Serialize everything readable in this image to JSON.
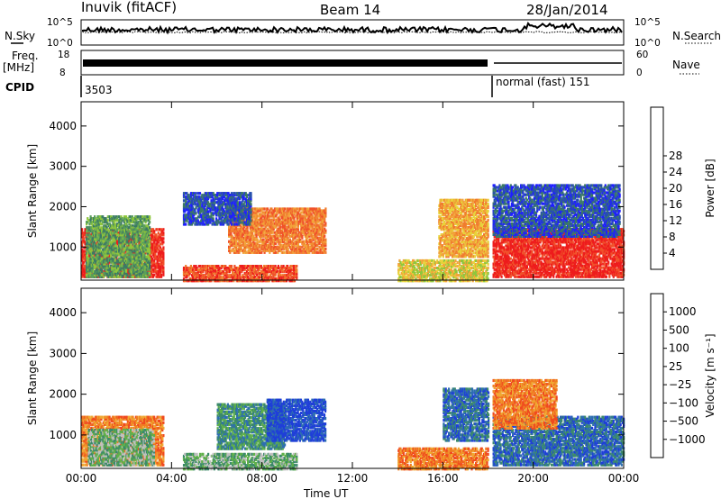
{
  "header": {
    "station": "Inuvik (fitACF)",
    "beam": "Beam 14",
    "date": "28/Jan/2014"
  },
  "strip": {
    "nsky_label": "N.Sky",
    "nsearch_label": "N.Search",
    "nsky_ticks": [
      "10^5",
      "10^0"
    ],
    "nsearch_ticks": [
      "10^5",
      "10^0"
    ],
    "freq_label": "Freq.",
    "freq_unit": "[MHz]",
    "freq_ticks": [
      "18",
      "8"
    ],
    "nave_label": "Nave",
    "nave_ticks": [
      "60",
      "0"
    ],
    "cpid_label": "CPID",
    "cpid_left": "3503",
    "cpid_right": "normal (fast) 151"
  },
  "chart_data": [
    {
      "type": "heatmap",
      "name": "power",
      "ylabel": "Slant Range [km]",
      "xlabel": "Time UT",
      "x_ticks": [
        "00:00",
        "04:00",
        "08:00",
        "12:00",
        "16:00",
        "20:00",
        "00:00"
      ],
      "xlim_hours": [
        0,
        24
      ],
      "y_ticks": [
        1000,
        2000,
        3000,
        4000
      ],
      "ylim": [
        180,
        4600
      ],
      "colorbar": {
        "label": "Power [dB]",
        "ticks": [
          "4",
          "8",
          "12",
          "16",
          "20",
          "24",
          "28"
        ],
        "colors": [
          "#1f1fff",
          "#274fb0",
          "#3c7a64",
          "#5aa05a",
          "#8ec63c",
          "#e8d23a",
          "#f2a33a",
          "#f07d2e",
          "#f0522a",
          "#ee1c1c"
        ]
      },
      "regions": [
        {
          "t0": 0.0,
          "t1": 3.6,
          "r0": 300,
          "r1": 1500,
          "level": 9
        },
        {
          "t0": 0.2,
          "t1": 3.0,
          "r0": 300,
          "r1": 1800,
          "level": 3
        },
        {
          "t0": 4.5,
          "t1": 9.5,
          "r0": 200,
          "r1": 600,
          "level": 8
        },
        {
          "t0": 6.5,
          "t1": 10.8,
          "r0": 900,
          "r1": 2000,
          "level": 7
        },
        {
          "t0": 4.5,
          "t1": 7.5,
          "r0": 1600,
          "r1": 2400,
          "level": 1
        },
        {
          "t0": 14.0,
          "t1": 18.0,
          "r0": 200,
          "r1": 700,
          "level": 5
        },
        {
          "t0": 15.8,
          "t1": 18.0,
          "r0": 800,
          "r1": 2200,
          "level": 6
        },
        {
          "t0": 18.2,
          "t1": 24.0,
          "r0": 300,
          "r1": 1500,
          "level": 9
        },
        {
          "t0": 18.2,
          "t1": 23.8,
          "r0": 1300,
          "r1": 2600,
          "level": 1
        }
      ]
    },
    {
      "type": "heatmap",
      "name": "velocity",
      "ylabel": "Slant Range [km]",
      "xlabel": "Time UT",
      "x_ticks": [
        "00:00",
        "04:00",
        "08:00",
        "12:00",
        "16:00",
        "20:00",
        "00:00"
      ],
      "xlim_hours": [
        0,
        24
      ],
      "y_ticks": [
        1000,
        2000,
        3000,
        4000
      ],
      "ylim": [
        180,
        4600
      ],
      "colorbar": {
        "label": "Velocity [m s⁻¹]",
        "ticks": [
          "1000",
          "500",
          "100",
          "25",
          "−25",
          "−100",
          "−500",
          "−1000"
        ],
        "colors": [
          "#1f3fd8",
          "#2e6fb0",
          "#3c8a6a",
          "#5fb04a",
          "#c0c0c0",
          "#f0a832",
          "#f07d22",
          "#f04a1e",
          "#ee1c1c"
        ]
      },
      "regions": [
        {
          "t0": 0.0,
          "t1": 3.6,
          "r0": 300,
          "r1": 1500,
          "level": 6
        },
        {
          "t0": 0.3,
          "t1": 3.2,
          "r0": 300,
          "r1": 1200,
          "level": 3
        },
        {
          "t0": 4.5,
          "t1": 9.5,
          "r0": 200,
          "r1": 600,
          "level": 3
        },
        {
          "t0": 6.0,
          "t1": 9.0,
          "r0": 700,
          "r1": 1800,
          "level": 2
        },
        {
          "t0": 8.2,
          "t1": 10.8,
          "r0": 900,
          "r1": 1900,
          "level": 0
        },
        {
          "t0": 14.0,
          "t1": 18.0,
          "r0": 200,
          "r1": 700,
          "level": 6
        },
        {
          "t0": 16.0,
          "t1": 18.0,
          "r0": 900,
          "r1": 2200,
          "level": 1
        },
        {
          "t0": 18.2,
          "t1": 24.0,
          "r0": 300,
          "r1": 1500,
          "level": 1
        },
        {
          "t0": 18.2,
          "t1": 21.0,
          "r0": 1200,
          "r1": 2400,
          "level": 6
        }
      ]
    }
  ]
}
